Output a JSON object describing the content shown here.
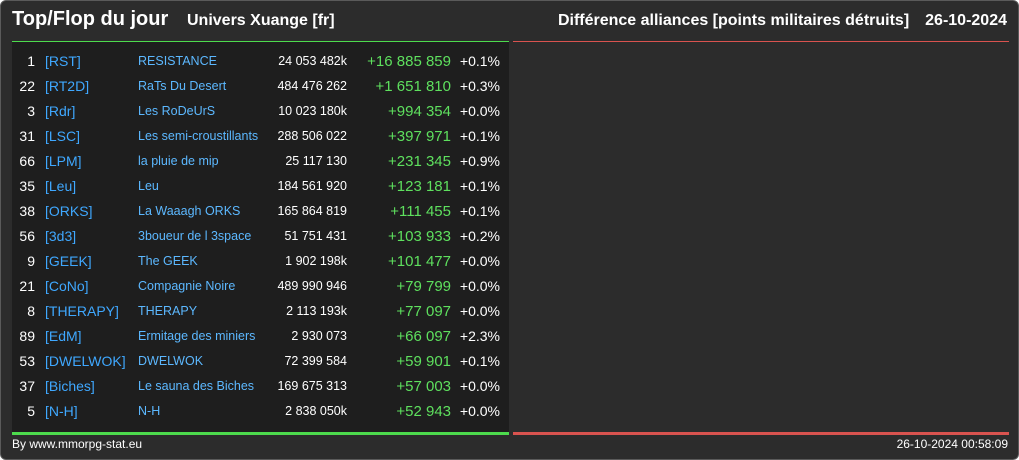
{
  "header": {
    "title": "Top/Flop du jour",
    "universe": "Univers Xuange [fr]",
    "subtitle": "Différence alliances [points militaires détruits]",
    "date": "26-10-2024"
  },
  "colors": {
    "accent_top": "#4ddb4d",
    "accent_flop": "#d9534f",
    "tag": "#3fa8ff",
    "gain": "#5ee05e"
  },
  "top_rows": [
    {
      "rank": "1",
      "tag": "[RST]",
      "name": "RESISTANCE",
      "points": "24 053 482k",
      "diff": "+16 885 859",
      "pct": "+0.1%"
    },
    {
      "rank": "22",
      "tag": "[RT2D]",
      "name": "RaTs Du Desert",
      "points": "484 476 262",
      "diff": "+1 651 810",
      "pct": "+0.3%"
    },
    {
      "rank": "3",
      "tag": "[Rdr]",
      "name": "Les RoDeUrS",
      "points": "10 023 180k",
      "diff": "+994 354",
      "pct": "+0.0%"
    },
    {
      "rank": "31",
      "tag": "[LSC]",
      "name": "Les semi-croustillants",
      "points": "288 506 022",
      "diff": "+397 971",
      "pct": "+0.1%"
    },
    {
      "rank": "66",
      "tag": "[LPM]",
      "name": "la pluie de mip",
      "points": "25 117 130",
      "diff": "+231 345",
      "pct": "+0.9%"
    },
    {
      "rank": "35",
      "tag": "[Leu]",
      "name": "Leu",
      "points": "184 561 920",
      "diff": "+123 181",
      "pct": "+0.1%"
    },
    {
      "rank": "38",
      "tag": "[ORKS]",
      "name": "La Waaagh ORKS",
      "points": "165 864 819",
      "diff": "+111 455",
      "pct": "+0.1%"
    },
    {
      "rank": "56",
      "tag": "[3d3]",
      "name": "3boueur de l 3space",
      "points": "51 751 431",
      "diff": "+103 933",
      "pct": "+0.2%"
    },
    {
      "rank": "9",
      "tag": "[GEEK]",
      "name": "The GEEK",
      "points": "1 902 198k",
      "diff": "+101 477",
      "pct": "+0.0%"
    },
    {
      "rank": "21",
      "tag": "[CoNo]",
      "name": "Compagnie Noire",
      "points": "489 990 946",
      "diff": "+79 799",
      "pct": "+0.0%"
    },
    {
      "rank": "8",
      "tag": "[THERAPY]",
      "name": "THERAPY",
      "points": "2 113 193k",
      "diff": "+77 097",
      "pct": "+0.0%"
    },
    {
      "rank": "89",
      "tag": "[EdM]",
      "name": "Ermitage des miniers",
      "points": "2 930 073",
      "diff": "+66 097",
      "pct": "+2.3%"
    },
    {
      "rank": "53",
      "tag": "[DWELWOK]",
      "name": "DWELWOK",
      "points": "72 399 584",
      "diff": "+59 901",
      "pct": "+0.1%"
    },
    {
      "rank": "37",
      "tag": "[Biches]",
      "name": "Le sauna des Biches",
      "points": "169 675 313",
      "diff": "+57 003",
      "pct": "+0.0%"
    },
    {
      "rank": "5",
      "tag": "[N-H]",
      "name": "N-H",
      "points": "2 838 050k",
      "diff": "+52 943",
      "pct": "+0.0%"
    }
  ],
  "footer": {
    "credit": "By www.mmorpg-stat.eu",
    "timestamp": "26-10-2024 00:58:09"
  }
}
